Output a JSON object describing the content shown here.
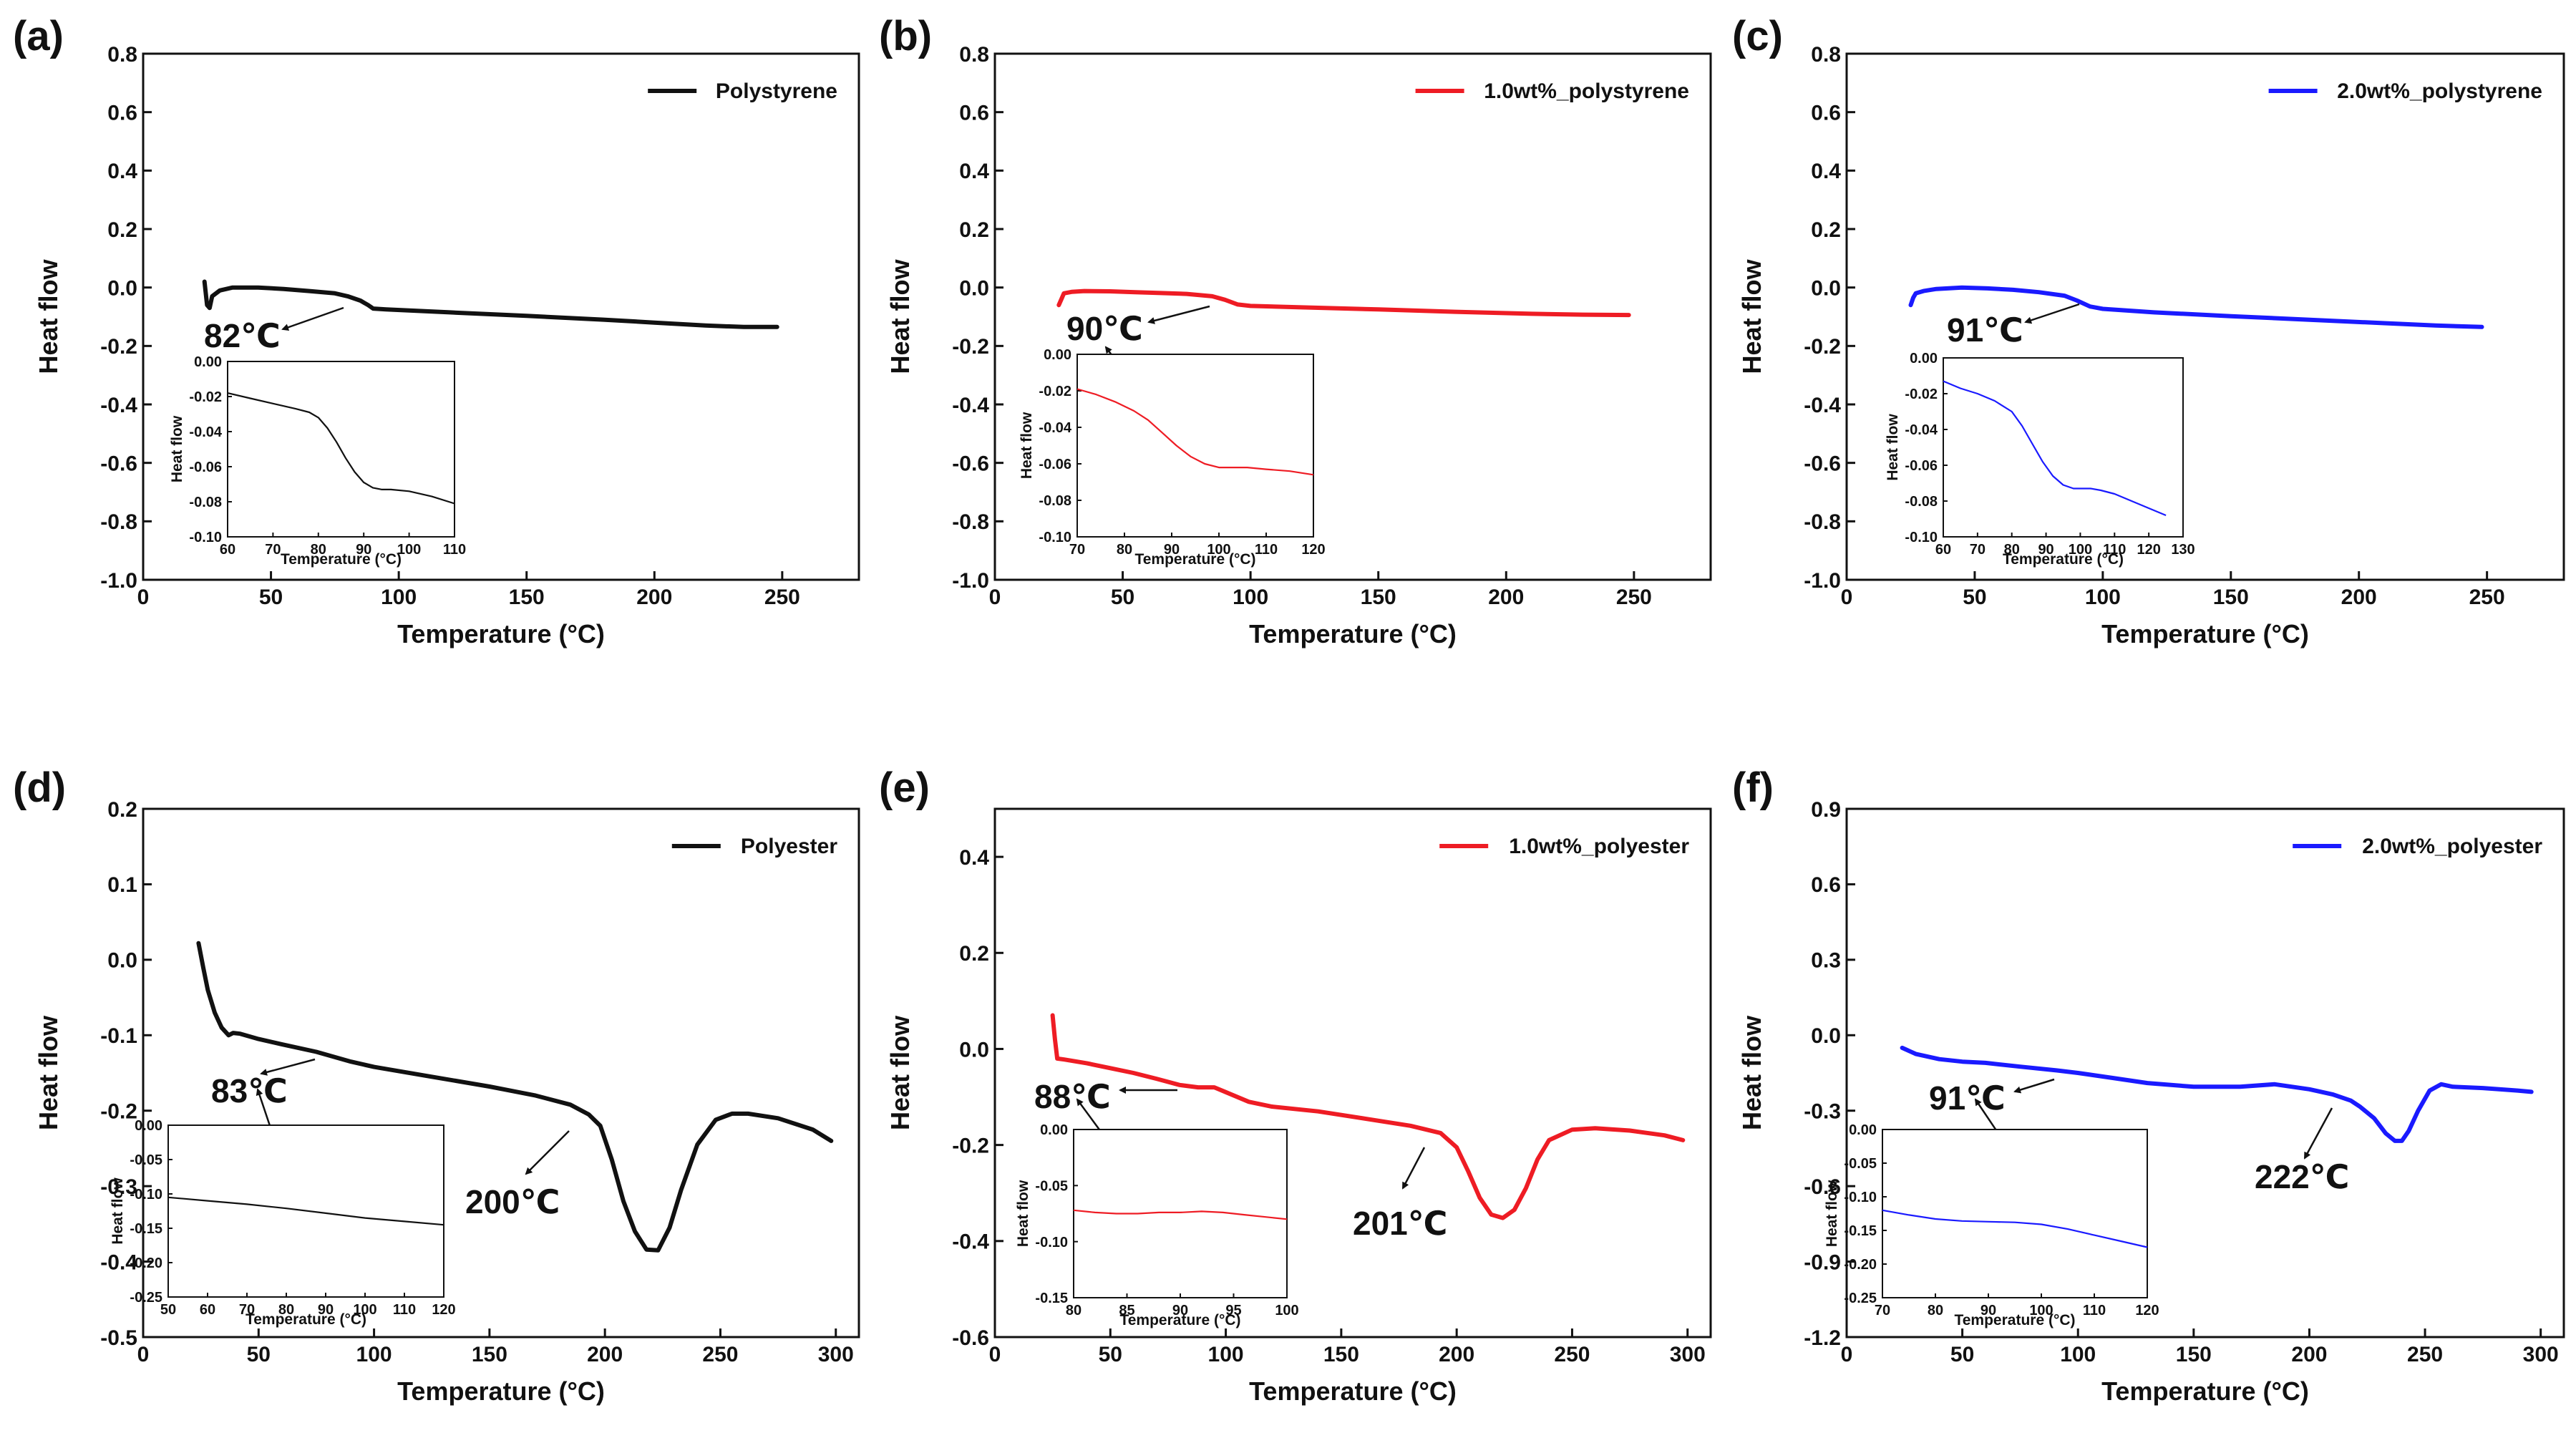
{
  "figure_title": "DSC heat flow curves",
  "colors": {
    "black": "#111111",
    "red": "#ee1c24",
    "blue": "#1a1aff"
  },
  "chart_data": [
    {
      "type": "line",
      "panel_label": "(a)",
      "color_key": "black",
      "xlabel": "Temperature (°C)",
      "ylabel": "Heat flow",
      "xlim": [
        0,
        280
      ],
      "ylim": [
        -1.0,
        0.8
      ],
      "xticks": [
        0,
        50,
        100,
        150,
        200,
        250
      ],
      "yticks": [
        -1.0,
        -0.8,
        -0.6,
        -0.4,
        -0.2,
        0.0,
        0.2,
        0.4,
        0.6,
        0.8
      ],
      "legend": "Polystyrene",
      "legend_position": "top-right",
      "series": [
        {
          "name": "Polystyrene",
          "x": [
            24,
            25,
            26,
            27,
            30,
            35,
            45,
            55,
            65,
            75,
            80,
            85,
            88,
            90,
            95,
            120,
            150,
            180,
            200,
            220,
            235,
            248
          ],
          "y": [
            0.02,
            -0.06,
            -0.07,
            -0.03,
            -0.01,
            0.0,
            0.0,
            -0.005,
            -0.012,
            -0.02,
            -0.03,
            -0.045,
            -0.06,
            -0.072,
            -0.075,
            -0.085,
            -0.097,
            -0.11,
            -0.12,
            -0.13,
            -0.135,
            -0.135
          ]
        }
      ],
      "annotations": [
        {
          "text": "82℃",
          "x": 82,
          "y": -0.05
        }
      ],
      "inset": {
        "xlabel": "Temperature (°C)",
        "ylabel": "Heat flow",
        "xlim": [
          60,
          110
        ],
        "ylim": [
          -0.1,
          0.0
        ],
        "xticks": [
          60,
          70,
          80,
          90,
          100,
          110
        ],
        "yticks": [
          -0.1,
          -0.08,
          -0.06,
          -0.04,
          -0.02,
          0.0
        ],
        "x": [
          60,
          65,
          70,
          75,
          78,
          80,
          82,
          84,
          86,
          88,
          90,
          92,
          94,
          96,
          100,
          105,
          110
        ],
        "y": [
          -0.018,
          -0.021,
          -0.024,
          -0.027,
          -0.029,
          -0.032,
          -0.038,
          -0.046,
          -0.055,
          -0.063,
          -0.069,
          -0.072,
          -0.073,
          -0.073,
          -0.074,
          -0.077,
          -0.081
        ]
      }
    },
    {
      "type": "line",
      "panel_label": "(b)",
      "color_key": "red",
      "xlabel": "Temperature (°C)",
      "ylabel": "Heat flow",
      "xlim": [
        0,
        280
      ],
      "ylim": [
        -1.0,
        0.8
      ],
      "xticks": [
        0,
        50,
        100,
        150,
        200,
        250
      ],
      "yticks": [
        -1.0,
        -0.8,
        -0.6,
        -0.4,
        -0.2,
        0.0,
        0.2,
        0.4,
        0.6,
        0.8
      ],
      "legend": "1.0wt%_polystyrene",
      "legend_position": "top-right",
      "series": [
        {
          "name": "1.0wt%_polystyrene",
          "x": [
            25,
            26,
            27,
            30,
            35,
            45,
            55,
            65,
            75,
            85,
            90,
            95,
            100,
            120,
            150,
            180,
            210,
            230,
            248
          ],
          "y": [
            -0.06,
            -0.04,
            -0.02,
            -0.015,
            -0.012,
            -0.013,
            -0.016,
            -0.019,
            -0.022,
            -0.03,
            -0.042,
            -0.058,
            -0.063,
            -0.068,
            -0.075,
            -0.083,
            -0.09,
            -0.093,
            -0.094
          ]
        }
      ],
      "annotations": [
        {
          "text": "90℃",
          "x": 90,
          "y": -0.04
        }
      ],
      "inset": {
        "xlabel": "Temperature (°C)",
        "ylabel": "Heat flow",
        "xlim": [
          70,
          120
        ],
        "ylim": [
          -0.1,
          0.0
        ],
        "xticks": [
          70,
          80,
          90,
          100,
          110,
          120
        ],
        "yticks": [
          -0.1,
          -0.08,
          -0.06,
          -0.04,
          -0.02,
          0.0
        ],
        "x": [
          70,
          74,
          78,
          82,
          85,
          88,
          91,
          94,
          97,
          100,
          103,
          106,
          110,
          115,
          120
        ],
        "y": [
          -0.019,
          -0.022,
          -0.026,
          -0.031,
          -0.036,
          -0.043,
          -0.05,
          -0.056,
          -0.06,
          -0.062,
          -0.062,
          -0.062,
          -0.063,
          -0.064,
          -0.066
        ]
      }
    },
    {
      "type": "line",
      "panel_label": "(c)",
      "color_key": "blue",
      "xlabel": "Temperature (°C)",
      "ylabel": "Heat flow",
      "xlim": [
        0,
        280
      ],
      "ylim": [
        -1.0,
        0.8
      ],
      "xticks": [
        0,
        50,
        100,
        150,
        200,
        250
      ],
      "yticks": [
        -1.0,
        -0.8,
        -0.6,
        -0.4,
        -0.2,
        0.0,
        0.2,
        0.4,
        0.6,
        0.8
      ],
      "legend": "2.0wt%_polystyrene",
      "legend_position": "top-right",
      "series": [
        {
          "name": "2.0wt%_polystyrene",
          "x": [
            25,
            26,
            27,
            30,
            35,
            45,
            55,
            65,
            75,
            85,
            90,
            95,
            100,
            120,
            150,
            180,
            210,
            230,
            248
          ],
          "y": [
            -0.06,
            -0.035,
            -0.02,
            -0.012,
            -0.005,
            0.0,
            -0.003,
            -0.008,
            -0.016,
            -0.028,
            -0.045,
            -0.065,
            -0.073,
            -0.085,
            -0.098,
            -0.11,
            -0.122,
            -0.13,
            -0.135
          ]
        }
      ],
      "annotations": [
        {
          "text": "91℃",
          "x": 91,
          "y": -0.04
        }
      ],
      "inset": {
        "xlabel": "Temperature (°C)",
        "ylabel": "Heat flow",
        "xlim": [
          60,
          130
        ],
        "ylim": [
          -0.1,
          0.0
        ],
        "xticks": [
          60,
          70,
          80,
          90,
          100,
          110,
          120,
          130
        ],
        "yticks": [
          -0.1,
          -0.08,
          -0.06,
          -0.04,
          -0.02,
          0.0
        ],
        "x": [
          60,
          65,
          70,
          75,
          80,
          83,
          86,
          89,
          92,
          95,
          98,
          100,
          103,
          106,
          110,
          115,
          120,
          125
        ],
        "y": [
          -0.013,
          -0.017,
          -0.02,
          -0.024,
          -0.03,
          -0.038,
          -0.048,
          -0.058,
          -0.066,
          -0.071,
          -0.073,
          -0.073,
          -0.073,
          -0.074,
          -0.076,
          -0.08,
          -0.084,
          -0.088
        ]
      }
    },
    {
      "type": "line",
      "panel_label": "(d)",
      "color_key": "black",
      "xlabel": "Temperature (°C)",
      "ylabel": "Heat flow",
      "xlim": [
        0,
        310
      ],
      "ylim": [
        -0.5,
        0.2
      ],
      "xticks": [
        0,
        50,
        100,
        150,
        200,
        250,
        300
      ],
      "yticks": [
        -0.5,
        -0.4,
        -0.3,
        -0.2,
        -0.1,
        0.0,
        0.1,
        0.2
      ],
      "legend": "Polyester",
      "legend_position": "top-right",
      "series": [
        {
          "name": "Polyester",
          "x": [
            24,
            26,
            28,
            31,
            34,
            37,
            39,
            42,
            50,
            60,
            75,
            90,
            100,
            125,
            150,
            170,
            185,
            193,
            198,
            203,
            208,
            213,
            218,
            223,
            228,
            233,
            240,
            248,
            255,
            262,
            275,
            290,
            298
          ],
          "y": [
            0.022,
            -0.01,
            -0.04,
            -0.07,
            -0.09,
            -0.1,
            -0.097,
            -0.098,
            -0.105,
            -0.112,
            -0.122,
            -0.135,
            -0.142,
            -0.155,
            -0.168,
            -0.18,
            -0.192,
            -0.205,
            -0.22,
            -0.265,
            -0.32,
            -0.36,
            -0.384,
            -0.385,
            -0.355,
            -0.305,
            -0.245,
            -0.212,
            -0.204,
            -0.204,
            -0.21,
            -0.225,
            -0.24
          ]
        }
      ],
      "annotations": [
        {
          "text": "83℃",
          "x": 83,
          "y": -0.13
        },
        {
          "text": "200℃",
          "x": 200,
          "y": -0.215
        }
      ],
      "inset": {
        "xlabel": "Temperature (°C)",
        "ylabel": "Heat flow",
        "xlim": [
          50,
          120
        ],
        "ylim": [
          -0.25,
          0.0
        ],
        "xticks": [
          50,
          60,
          70,
          80,
          90,
          100,
          110,
          120
        ],
        "yticks": [
          -0.25,
          -0.2,
          -0.15,
          -0.1,
          -0.05,
          0.0
        ],
        "x": [
          50,
          60,
          70,
          80,
          90,
          100,
          110,
          120
        ],
        "y": [
          -0.105,
          -0.11,
          -0.115,
          -0.121,
          -0.128,
          -0.135,
          -0.14,
          -0.145
        ]
      }
    },
    {
      "type": "line",
      "panel_label": "(e)",
      "color_key": "red",
      "xlabel": "Temperature (°C)",
      "ylabel": "Heat flow",
      "xlim": [
        0,
        310
      ],
      "ylim": [
        -0.6,
        0.5
      ],
      "xticks": [
        0,
        50,
        100,
        150,
        200,
        250,
        300
      ],
      "yticks": [
        -0.6,
        -0.4,
        -0.2,
        0.0,
        0.2,
        0.4
      ],
      "legend": "1.0wt%_polyester",
      "legend_position": "top-right",
      "series": [
        {
          "name": "1.0wt%_polyester",
          "x": [
            25,
            26,
            27,
            30,
            40,
            50,
            60,
            70,
            80,
            88,
            95,
            100,
            110,
            120,
            140,
            160,
            180,
            193,
            200,
            205,
            210,
            215,
            220,
            225,
            230,
            235,
            240,
            250,
            260,
            275,
            290,
            298
          ],
          "y": [
            0.07,
            0.02,
            -0.02,
            -0.022,
            -0.03,
            -0.04,
            -0.05,
            -0.062,
            -0.075,
            -0.08,
            -0.08,
            -0.09,
            -0.11,
            -0.12,
            -0.13,
            -0.145,
            -0.16,
            -0.175,
            -0.205,
            -0.255,
            -0.31,
            -0.345,
            -0.352,
            -0.335,
            -0.29,
            -0.23,
            -0.19,
            -0.168,
            -0.165,
            -0.17,
            -0.18,
            -0.19
          ]
        }
      ],
      "annotations": [
        {
          "text": "88℃",
          "x": 88,
          "y": -0.08
        },
        {
          "text": "201℃",
          "x": 201,
          "y": -0.2
        }
      ],
      "inset": {
        "xlabel": "Temperature (°C)",
        "ylabel": "Heat flow",
        "xlim": [
          80,
          100
        ],
        "ylim": [
          -0.15,
          0.0
        ],
        "xticks": [
          80,
          85,
          90,
          95,
          100
        ],
        "yticks": [
          -0.15,
          -0.1,
          -0.05,
          0.0
        ],
        "x": [
          80,
          82,
          84,
          86,
          88,
          90,
          92,
          94,
          96,
          98,
          100
        ],
        "y": [
          -0.072,
          -0.074,
          -0.075,
          -0.075,
          -0.074,
          -0.074,
          -0.073,
          -0.074,
          -0.076,
          -0.078,
          -0.08
        ]
      }
    },
    {
      "type": "line",
      "panel_label": "(f)",
      "color_key": "blue",
      "xlabel": "Temperature (°C)",
      "ylabel": "Heat flow",
      "xlim": [
        0,
        310
      ],
      "ylim": [
        -1.2,
        0.9
      ],
      "xticks": [
        0,
        50,
        100,
        150,
        200,
        250,
        300
      ],
      "yticks": [
        -1.2,
        -0.9,
        -0.6,
        -0.3,
        0.0,
        0.3,
        0.6,
        0.9
      ],
      "legend": "2.0wt%_polyester",
      "legend_position": "top-right",
      "series": [
        {
          "name": "2.0wt%_polyester",
          "x": [
            24,
            30,
            40,
            50,
            60,
            75,
            91,
            100,
            115,
            130,
            150,
            170,
            185,
            200,
            210,
            218,
            222,
            228,
            233,
            237,
            240,
            243,
            247,
            252,
            257,
            262,
            275,
            290,
            296
          ],
          "y": [
            -0.05,
            -0.075,
            -0.095,
            -0.105,
            -0.11,
            -0.125,
            -0.14,
            -0.15,
            -0.17,
            -0.19,
            -0.205,
            -0.205,
            -0.195,
            -0.215,
            -0.235,
            -0.26,
            -0.285,
            -0.33,
            -0.39,
            -0.42,
            -0.42,
            -0.38,
            -0.3,
            -0.22,
            -0.195,
            -0.205,
            -0.21,
            -0.22,
            -0.225
          ]
        }
      ],
      "annotations": [
        {
          "text": "91℃",
          "x": 91,
          "y": -0.18
        },
        {
          "text": "222℃",
          "x": 222,
          "y": -0.28
        }
      ],
      "inset": {
        "xlabel": "Temperature (°C)",
        "ylabel": "Heat flow",
        "xlim": [
          70,
          120
        ],
        "ylim": [
          -0.25,
          0.0
        ],
        "xticks": [
          70,
          80,
          90,
          100,
          110,
          120
        ],
        "yticks": [
          -0.25,
          -0.2,
          -0.15,
          -0.1,
          -0.05,
          0.0
        ],
        "x": [
          70,
          75,
          80,
          85,
          90,
          95,
          100,
          105,
          110,
          115,
          120
        ],
        "y": [
          -0.12,
          -0.127,
          -0.133,
          -0.136,
          -0.137,
          -0.138,
          -0.141,
          -0.148,
          -0.157,
          -0.166,
          -0.175
        ]
      }
    }
  ]
}
